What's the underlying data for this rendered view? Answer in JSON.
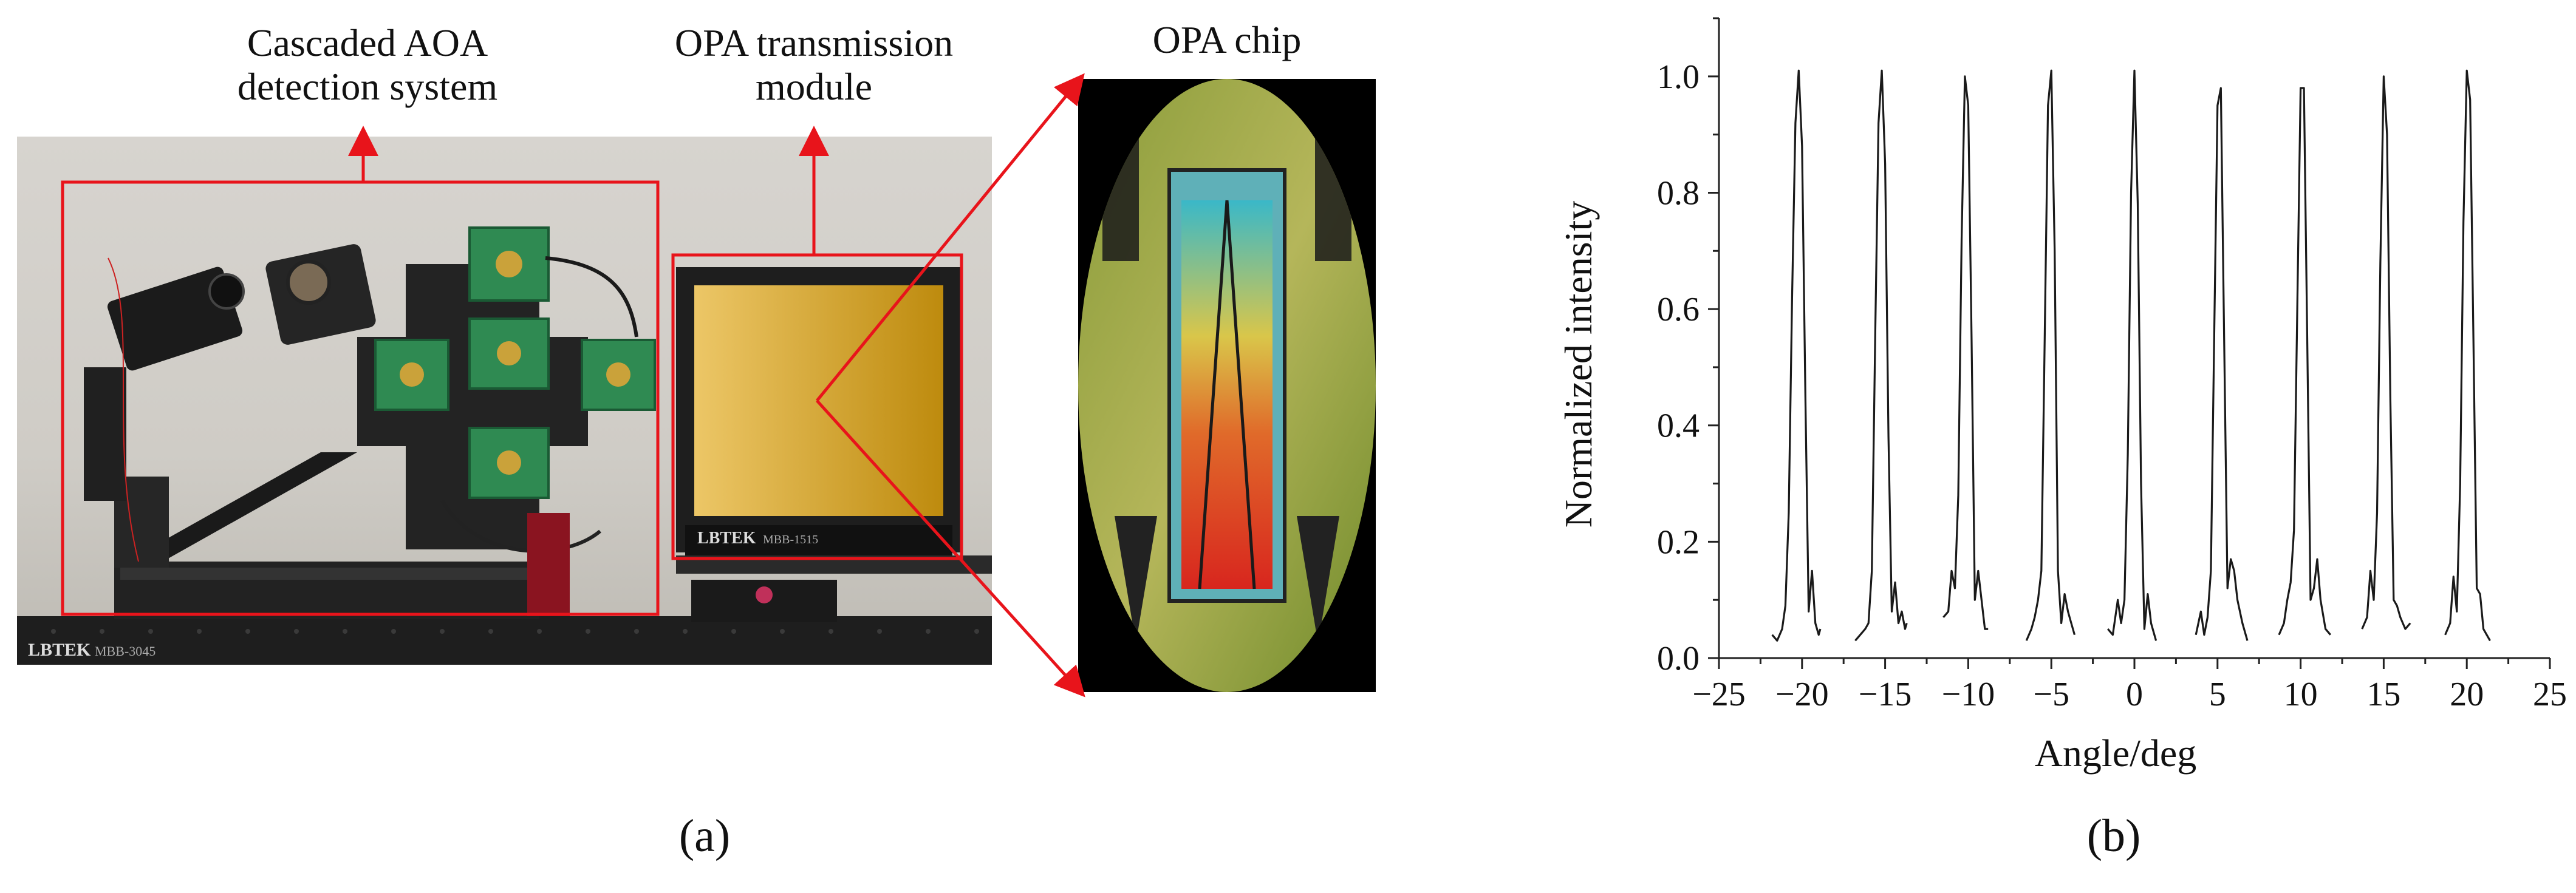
{
  "panel_a": {
    "label_cascaded": "Cascaded AOA\ndetection system",
    "label_opa_module": "OPA transmission\nmodule",
    "label_chip": "OPA chip",
    "plate_brand_main": "LBTEK",
    "plate_model_main": "MBB-3045",
    "plate_brand_module": "LBTEK",
    "plate_model_module": "MBB-1515",
    "caption": "(a)",
    "colors": {
      "annotation_red": "#e8141b",
      "module_yellow": "#e2a815",
      "table_black": "#1c1c1c"
    }
  },
  "panel_b": {
    "caption": "(b)"
  },
  "chart_data": {
    "type": "line",
    "xlabel": "Angle/deg",
    "ylabel": "Normalized intensity",
    "xlim": [
      -25,
      25
    ],
    "ylim": [
      0,
      1.1
    ],
    "xticks": [
      "−25",
      "−20",
      "−15",
      "−10",
      "−5",
      "0",
      "5",
      "10",
      "15",
      "20",
      "25"
    ],
    "yticks": [
      "0.0",
      "0.2",
      "0.4",
      "0.6",
      "0.8",
      "1.0"
    ],
    "grid": false,
    "line_color": "#1a1a1a",
    "series": [
      {
        "segments": [
          {
            "peak": -20.2,
            "x": [
              -21.8,
              -21.5,
              -21.2,
              -21.0,
              -20.8,
              -20.6,
              -20.4,
              -20.2,
              -20.0,
              -19.8,
              -19.6,
              -19.4,
              -19.2,
              -19.0,
              -18.9
            ],
            "y": [
              0.04,
              0.03,
              0.05,
              0.09,
              0.25,
              0.62,
              0.92,
              1.01,
              0.88,
              0.45,
              0.08,
              0.15,
              0.06,
              0.04,
              0.05
            ]
          },
          {
            "peak": -15.2,
            "x": [
              -16.8,
              -16.5,
              -16.2,
              -16.0,
              -15.8,
              -15.6,
              -15.4,
              -15.2,
              -15.0,
              -14.8,
              -14.6,
              -14.4,
              -14.2,
              -14.0,
              -13.8,
              -13.7
            ],
            "y": [
              0.03,
              0.04,
              0.05,
              0.06,
              0.15,
              0.55,
              0.92,
              1.01,
              0.85,
              0.38,
              0.08,
              0.13,
              0.06,
              0.08,
              0.05,
              0.06
            ]
          },
          {
            "peak": -10.1,
            "x": [
              -11.5,
              -11.2,
              -11.0,
              -10.8,
              -10.6,
              -10.4,
              -10.2,
              -10.0,
              -9.8,
              -9.6,
              -9.4,
              -9.2,
              -9.0,
              -8.8
            ],
            "y": [
              0.07,
              0.08,
              0.15,
              0.12,
              0.28,
              0.72,
              1.0,
              0.95,
              0.55,
              0.1,
              0.15,
              0.1,
              0.05,
              0.05
            ]
          },
          {
            "peak": -5.1,
            "x": [
              -6.5,
              -6.2,
              -6.0,
              -5.8,
              -5.6,
              -5.4,
              -5.2,
              -5.0,
              -4.8,
              -4.6,
              -4.4,
              -4.2,
              -4.0,
              -3.8,
              -3.6
            ],
            "y": [
              0.03,
              0.05,
              0.07,
              0.1,
              0.15,
              0.55,
              0.95,
              1.01,
              0.7,
              0.15,
              0.06,
              0.11,
              0.08,
              0.06,
              0.04
            ]
          },
          {
            "peak": 0.0,
            "x": [
              -1.6,
              -1.3,
              -1.0,
              -0.8,
              -0.6,
              -0.4,
              -0.2,
              0.0,
              0.2,
              0.4,
              0.6,
              0.8,
              1.0,
              1.3
            ],
            "y": [
              0.05,
              0.04,
              0.1,
              0.06,
              0.1,
              0.35,
              0.8,
              1.01,
              0.78,
              0.3,
              0.05,
              0.11,
              0.06,
              0.03
            ]
          },
          {
            "peak": 5.1,
            "x": [
              3.7,
              4.0,
              4.2,
              4.4,
              4.6,
              4.8,
              5.0,
              5.2,
              5.4,
              5.6,
              5.8,
              6.0,
              6.2,
              6.5,
              6.8
            ],
            "y": [
              0.04,
              0.08,
              0.04,
              0.07,
              0.15,
              0.55,
              0.95,
              0.98,
              0.55,
              0.12,
              0.17,
              0.15,
              0.1,
              0.06,
              0.03
            ]
          },
          {
            "peak": 10.1,
            "x": [
              8.7,
              9.0,
              9.2,
              9.4,
              9.6,
              9.8,
              10.0,
              10.2,
              10.4,
              10.6,
              10.8,
              11.0,
              11.2,
              11.5,
              11.8
            ],
            "y": [
              0.04,
              0.06,
              0.1,
              0.13,
              0.22,
              0.6,
              0.98,
              0.98,
              0.55,
              0.1,
              0.12,
              0.17,
              0.1,
              0.05,
              0.04
            ]
          },
          {
            "peak": 15.1,
            "x": [
              13.7,
              14.0,
              14.2,
              14.4,
              14.6,
              14.8,
              15.0,
              15.2,
              15.4,
              15.6,
              15.8,
              16.0,
              16.3,
              16.6
            ],
            "y": [
              0.05,
              0.07,
              0.15,
              0.1,
              0.25,
              0.68,
              1.0,
              0.9,
              0.45,
              0.1,
              0.09,
              0.07,
              0.05,
              0.06
            ]
          },
          {
            "peak": 20.1,
            "x": [
              18.7,
              19.0,
              19.2,
              19.4,
              19.6,
              19.8,
              20.0,
              20.2,
              20.4,
              20.6,
              20.8,
              21.0,
              21.2,
              21.4
            ],
            "y": [
              0.04,
              0.06,
              0.14,
              0.08,
              0.3,
              0.75,
              1.01,
              0.96,
              0.55,
              0.12,
              0.11,
              0.05,
              0.04,
              0.03
            ]
          }
        ]
      }
    ]
  }
}
